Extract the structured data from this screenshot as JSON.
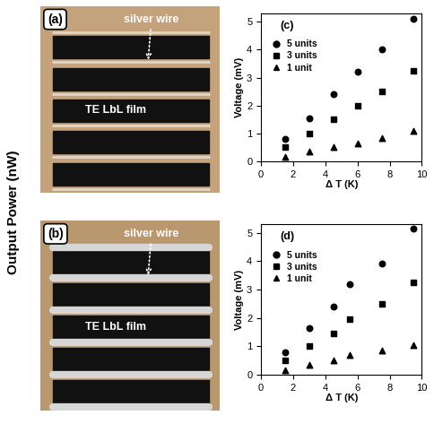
{
  "chart_data": [
    {
      "type": "scatter",
      "annotation": "(c)",
      "x_label": "Δ T (K)",
      "y_label": "Voltage (mV)",
      "xlim": [
        0,
        10
      ],
      "xticks": [
        0,
        2,
        4,
        6,
        8,
        10
      ],
      "ylim": [
        0,
        5.3
      ],
      "yticks": [
        0,
        1,
        2,
        3,
        4,
        5
      ],
      "legend": "upper left",
      "color": "#000000",
      "series": [
        {
          "name": "5 units",
          "marker": "circle",
          "x": [
            1.5,
            3,
            4.5,
            6,
            7.5,
            9.5
          ],
          "values": [
            0.8,
            1.55,
            2.4,
            3.2,
            4.0,
            5.1
          ]
        },
        {
          "name": "3 units",
          "marker": "square",
          "x": [
            1.5,
            3,
            4.5,
            6,
            7.5,
            9.5
          ],
          "values": [
            0.5,
            1.0,
            1.5,
            2.0,
            2.5,
            3.25
          ]
        },
        {
          "name": "1 unit",
          "marker": "triangle",
          "x": [
            1.5,
            3,
            4.5,
            6,
            7.5,
            9.5
          ],
          "values": [
            0.15,
            0.35,
            0.5,
            0.65,
            0.85,
            1.1
          ]
        }
      ]
    },
    {
      "type": "scatter",
      "annotation": "(d)",
      "x_label": "Δ T (K)",
      "y_label": "Voltage (mV)",
      "xlim": [
        0,
        10
      ],
      "xticks": [
        0,
        2,
        4,
        6,
        8,
        10
      ],
      "ylim": [
        0,
        5.3
      ],
      "yticks": [
        0,
        1,
        2,
        3,
        4,
        5
      ],
      "legend": "upper left",
      "color": "#000000",
      "series": [
        {
          "name": "5 units",
          "marker": "circle",
          "x": [
            1.5,
            3,
            4.5,
            5.5,
            7.5,
            9.5
          ],
          "values": [
            0.8,
            1.65,
            2.4,
            3.2,
            3.9,
            5.15
          ]
        },
        {
          "name": "3 units",
          "marker": "square",
          "x": [
            1.5,
            3,
            4.5,
            5.5,
            7.5,
            9.5
          ],
          "values": [
            0.5,
            1.0,
            1.45,
            1.95,
            2.5,
            3.25
          ]
        },
        {
          "name": "1 unit",
          "marker": "triangle",
          "x": [
            1.5,
            3,
            4.5,
            5.5,
            7.5,
            9.5
          ],
          "values": [
            0.15,
            0.35,
            0.5,
            0.7,
            0.85,
            1.05
          ]
        }
      ]
    }
  ],
  "panels": [
    {
      "label": "(a)",
      "wire_label": "silver wire",
      "film_label": "TE LbL film"
    },
    {
      "label": "(b)",
      "wire_label": "silver wire",
      "film_label": "TE LbL film"
    }
  ],
  "side_text": "Output Power (nW)"
}
